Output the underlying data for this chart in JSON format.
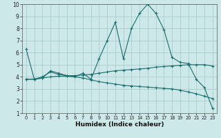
{
  "xlabel": "Humidex (Indice chaleur)",
  "bg_color": "#cce8e8",
  "grid_color": "#aacccc",
  "line_color": "#1a6b6b",
  "xlim": [
    -0.5,
    23.5
  ],
  "ylim": [
    1,
    10
  ],
  "xticks": [
    0,
    1,
    2,
    3,
    4,
    5,
    6,
    7,
    8,
    9,
    10,
    11,
    12,
    13,
    14,
    15,
    16,
    17,
    18,
    19,
    20,
    21,
    22,
    23
  ],
  "yticks": [
    1,
    2,
    3,
    4,
    5,
    6,
    7,
    8,
    9,
    10
  ],
  "line1_x": [
    0,
    1,
    2,
    3,
    4,
    5,
    6,
    7,
    8,
    9,
    10,
    11,
    12,
    13,
    14,
    15,
    16,
    17,
    18,
    19,
    20,
    21,
    22,
    23
  ],
  "line1_y": [
    6.3,
    3.8,
    3.9,
    4.5,
    4.3,
    4.1,
    4.0,
    4.3,
    3.8,
    5.5,
    7.0,
    8.5,
    5.5,
    8.0,
    9.25,
    10.0,
    9.25,
    7.9,
    5.6,
    5.2,
    5.1,
    3.8,
    3.1,
    1.4
  ],
  "line2_x": [
    0,
    1,
    2,
    3,
    4,
    5,
    6,
    7,
    8,
    9,
    10,
    11,
    12,
    13,
    14,
    15,
    16,
    17,
    18,
    19,
    20,
    21,
    22,
    23
  ],
  "line2_y": [
    3.8,
    3.8,
    4.0,
    4.4,
    4.2,
    4.1,
    4.1,
    4.15,
    4.2,
    4.3,
    4.4,
    4.5,
    4.55,
    4.6,
    4.65,
    4.7,
    4.8,
    4.85,
    4.9,
    4.95,
    5.0,
    5.0,
    5.0,
    4.9
  ],
  "line3_x": [
    0,
    1,
    2,
    3,
    4,
    5,
    6,
    7,
    8,
    9,
    10,
    11,
    12,
    13,
    14,
    15,
    16,
    17,
    18,
    19,
    20,
    21,
    22,
    23
  ],
  "line3_y": [
    3.8,
    3.8,
    3.9,
    4.0,
    4.05,
    4.05,
    4.0,
    3.9,
    3.75,
    3.6,
    3.5,
    3.4,
    3.3,
    3.25,
    3.2,
    3.15,
    3.1,
    3.05,
    3.0,
    2.9,
    2.75,
    2.6,
    2.4,
    2.2
  ]
}
